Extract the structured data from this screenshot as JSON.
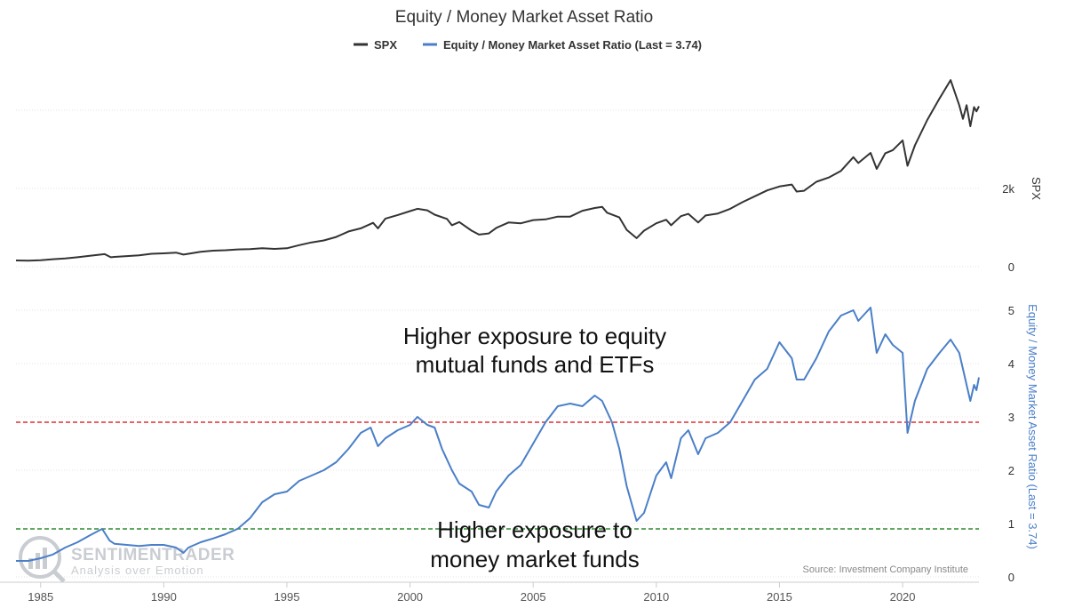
{
  "chart_data": {
    "type": "line",
    "title": "Equity / Money Market Asset Ratio",
    "legend": {
      "placement": "top-center"
    },
    "series": [
      {
        "name": "SPX",
        "legend_label": "SPX",
        "color": "#333333",
        "axis": "spx",
        "points": [
          [
            1984.0,
            160
          ],
          [
            1984.5,
            155
          ],
          [
            1985.0,
            167
          ],
          [
            1985.5,
            190
          ],
          [
            1986.0,
            210
          ],
          [
            1986.5,
            240
          ],
          [
            1987.0,
            280
          ],
          [
            1987.6,
            320
          ],
          [
            1987.85,
            240
          ],
          [
            1988.0,
            250
          ],
          [
            1988.5,
            270
          ],
          [
            1989.0,
            290
          ],
          [
            1989.5,
            330
          ],
          [
            1990.0,
            340
          ],
          [
            1990.5,
            360
          ],
          [
            1990.8,
            310
          ],
          [
            1991.0,
            330
          ],
          [
            1991.5,
            380
          ],
          [
            1992.0,
            410
          ],
          [
            1992.5,
            420
          ],
          [
            1993.0,
            440
          ],
          [
            1993.5,
            450
          ],
          [
            1994.0,
            470
          ],
          [
            1994.5,
            455
          ],
          [
            1995.0,
            470
          ],
          [
            1995.5,
            550
          ],
          [
            1996.0,
            620
          ],
          [
            1996.5,
            670
          ],
          [
            1997.0,
            760
          ],
          [
            1997.5,
            900
          ],
          [
            1998.0,
            980
          ],
          [
            1998.5,
            1120
          ],
          [
            1998.7,
            980
          ],
          [
            1999.0,
            1230
          ],
          [
            1999.5,
            1320
          ],
          [
            2000.0,
            1420
          ],
          [
            2000.3,
            1480
          ],
          [
            2000.7,
            1440
          ],
          [
            2001.0,
            1330
          ],
          [
            2001.5,
            1220
          ],
          [
            2001.7,
            1060
          ],
          [
            2002.0,
            1140
          ],
          [
            2002.5,
            920
          ],
          [
            2002.8,
            820
          ],
          [
            2003.2,
            850
          ],
          [
            2003.5,
            990
          ],
          [
            2004.0,
            1130
          ],
          [
            2004.5,
            1110
          ],
          [
            2005.0,
            1190
          ],
          [
            2005.5,
            1210
          ],
          [
            2006.0,
            1280
          ],
          [
            2006.5,
            1280
          ],
          [
            2007.0,
            1430
          ],
          [
            2007.5,
            1500
          ],
          [
            2007.8,
            1530
          ],
          [
            2008.0,
            1380
          ],
          [
            2008.5,
            1260
          ],
          [
            2008.8,
            940
          ],
          [
            2009.2,
            730
          ],
          [
            2009.5,
            920
          ],
          [
            2010.0,
            1110
          ],
          [
            2010.4,
            1200
          ],
          [
            2010.6,
            1060
          ],
          [
            2011.0,
            1290
          ],
          [
            2011.3,
            1350
          ],
          [
            2011.7,
            1130
          ],
          [
            2012.0,
            1310
          ],
          [
            2012.5,
            1360
          ],
          [
            2013.0,
            1480
          ],
          [
            2013.5,
            1650
          ],
          [
            2014.0,
            1800
          ],
          [
            2014.5,
            1950
          ],
          [
            2015.0,
            2050
          ],
          [
            2015.5,
            2100
          ],
          [
            2015.7,
            1920
          ],
          [
            2016.0,
            1940
          ],
          [
            2016.5,
            2170
          ],
          [
            2017.0,
            2280
          ],
          [
            2017.5,
            2450
          ],
          [
            2018.0,
            2800
          ],
          [
            2018.2,
            2650
          ],
          [
            2018.7,
            2910
          ],
          [
            2018.95,
            2500
          ],
          [
            2019.3,
            2900
          ],
          [
            2019.6,
            2980
          ],
          [
            2020.0,
            3230
          ],
          [
            2020.2,
            2580
          ],
          [
            2020.5,
            3100
          ],
          [
            2021.0,
            3750
          ],
          [
            2021.5,
            4300
          ],
          [
            2021.95,
            4770
          ],
          [
            2022.3,
            4130
          ],
          [
            2022.45,
            3780
          ],
          [
            2022.6,
            4130
          ],
          [
            2022.75,
            3590
          ],
          [
            2022.9,
            4080
          ],
          [
            2023.0,
            3970
          ],
          [
            2023.1,
            4100
          ]
        ]
      },
      {
        "name": "Equity / Money Market Asset Ratio",
        "legend_label": "Equity / Money Market Asset Ratio (Last = 3.74)",
        "last_value": 3.74,
        "color": "#4a7fc8",
        "axis": "ratio",
        "points": [
          [
            1984.0,
            0.3
          ],
          [
            1984.5,
            0.3
          ],
          [
            1985.0,
            0.35
          ],
          [
            1985.5,
            0.42
          ],
          [
            1986.0,
            0.55
          ],
          [
            1986.5,
            0.65
          ],
          [
            1987.0,
            0.78
          ],
          [
            1987.5,
            0.9
          ],
          [
            1987.8,
            0.68
          ],
          [
            1988.0,
            0.62
          ],
          [
            1988.5,
            0.6
          ],
          [
            1989.0,
            0.58
          ],
          [
            1989.5,
            0.6
          ],
          [
            1990.0,
            0.6
          ],
          [
            1990.5,
            0.55
          ],
          [
            1990.8,
            0.45
          ],
          [
            1991.0,
            0.55
          ],
          [
            1991.5,
            0.65
          ],
          [
            1992.0,
            0.72
          ],
          [
            1992.5,
            0.8
          ],
          [
            1993.0,
            0.9
          ],
          [
            1993.5,
            1.1
          ],
          [
            1994.0,
            1.4
          ],
          [
            1994.5,
            1.55
          ],
          [
            1995.0,
            1.6
          ],
          [
            1995.5,
            1.8
          ],
          [
            1996.0,
            1.9
          ],
          [
            1996.5,
            2.0
          ],
          [
            1997.0,
            2.15
          ],
          [
            1997.5,
            2.4
          ],
          [
            1998.0,
            2.7
          ],
          [
            1998.4,
            2.8
          ],
          [
            1998.7,
            2.45
          ],
          [
            1999.0,
            2.6
          ],
          [
            1999.5,
            2.75
          ],
          [
            2000.0,
            2.85
          ],
          [
            2000.3,
            3.0
          ],
          [
            2000.7,
            2.85
          ],
          [
            2001.0,
            2.8
          ],
          [
            2001.3,
            2.4
          ],
          [
            2001.7,
            2.0
          ],
          [
            2002.0,
            1.75
          ],
          [
            2002.5,
            1.6
          ],
          [
            2002.8,
            1.35
          ],
          [
            2003.2,
            1.3
          ],
          [
            2003.5,
            1.6
          ],
          [
            2004.0,
            1.9
          ],
          [
            2004.5,
            2.1
          ],
          [
            2005.0,
            2.5
          ],
          [
            2005.5,
            2.9
          ],
          [
            2006.0,
            3.2
          ],
          [
            2006.5,
            3.25
          ],
          [
            2007.0,
            3.2
          ],
          [
            2007.5,
            3.4
          ],
          [
            2007.8,
            3.3
          ],
          [
            2008.2,
            2.9
          ],
          [
            2008.5,
            2.4
          ],
          [
            2008.8,
            1.7
          ],
          [
            2009.2,
            1.05
          ],
          [
            2009.5,
            1.2
          ],
          [
            2010.0,
            1.9
          ],
          [
            2010.4,
            2.15
          ],
          [
            2010.6,
            1.85
          ],
          [
            2011.0,
            2.6
          ],
          [
            2011.3,
            2.75
          ],
          [
            2011.7,
            2.3
          ],
          [
            2012.0,
            2.6
          ],
          [
            2012.5,
            2.7
          ],
          [
            2013.0,
            2.9
          ],
          [
            2013.5,
            3.3
          ],
          [
            2014.0,
            3.7
          ],
          [
            2014.5,
            3.9
          ],
          [
            2015.0,
            4.4
          ],
          [
            2015.5,
            4.1
          ],
          [
            2015.7,
            3.7
          ],
          [
            2016.0,
            3.7
          ],
          [
            2016.5,
            4.1
          ],
          [
            2017.0,
            4.6
          ],
          [
            2017.5,
            4.9
          ],
          [
            2018.0,
            5.0
          ],
          [
            2018.2,
            4.8
          ],
          [
            2018.7,
            5.05
          ],
          [
            2018.95,
            4.2
          ],
          [
            2019.3,
            4.55
          ],
          [
            2019.6,
            4.35
          ],
          [
            2020.0,
            4.2
          ],
          [
            2020.2,
            2.7
          ],
          [
            2020.5,
            3.3
          ],
          [
            2021.0,
            3.9
          ],
          [
            2021.5,
            4.2
          ],
          [
            2021.95,
            4.45
          ],
          [
            2022.3,
            4.2
          ],
          [
            2022.45,
            3.9
          ],
          [
            2022.6,
            3.6
          ],
          [
            2022.75,
            3.3
          ],
          [
            2022.9,
            3.6
          ],
          [
            2023.0,
            3.5
          ],
          [
            2023.1,
            3.74
          ]
        ]
      }
    ],
    "axes": {
      "x": {
        "range": [
          1984,
          2023.1
        ],
        "tick_labels": [
          "1985",
          "1990",
          "1995",
          "2000",
          "2005",
          "2010",
          "2015",
          "2020"
        ],
        "tick_values": [
          1985,
          1990,
          1995,
          2000,
          2005,
          2010,
          2015,
          2020
        ]
      },
      "spx": {
        "label": "SPX",
        "range": [
          0,
          5000
        ],
        "tick_labels": [
          "0",
          "2k"
        ],
        "tick_values": [
          0,
          2000
        ],
        "grid": true,
        "color": "#333333"
      },
      "ratio": {
        "label": "Equity / Money Market Asset Ratio (Last = 3.74)",
        "range": [
          -0.1,
          5.4
        ],
        "tick_labels": [
          "0",
          "1",
          "2",
          "3",
          "4",
          "5"
        ],
        "tick_values": [
          0,
          1,
          2,
          3,
          4,
          5
        ],
        "grid": true,
        "color": "#4a7fc8"
      }
    },
    "reference_lines": [
      {
        "axis": "ratio",
        "value": 2.9,
        "color": "#e03030",
        "style": "dashed"
      },
      {
        "axis": "ratio",
        "value": 0.9,
        "color": "#2e8b2e",
        "style": "dashed"
      }
    ],
    "annotations": [
      {
        "lines": [
          "Higher exposure to equity",
          "mutual funds and ETFs"
        ]
      },
      {
        "lines": [
          "Higher exposure to",
          "money market funds"
        ]
      }
    ],
    "source": "Source: Investment Company Institute",
    "watermark": {
      "main": "SENTIMENTRADER",
      "sub": "Analysis over Emotion"
    }
  }
}
